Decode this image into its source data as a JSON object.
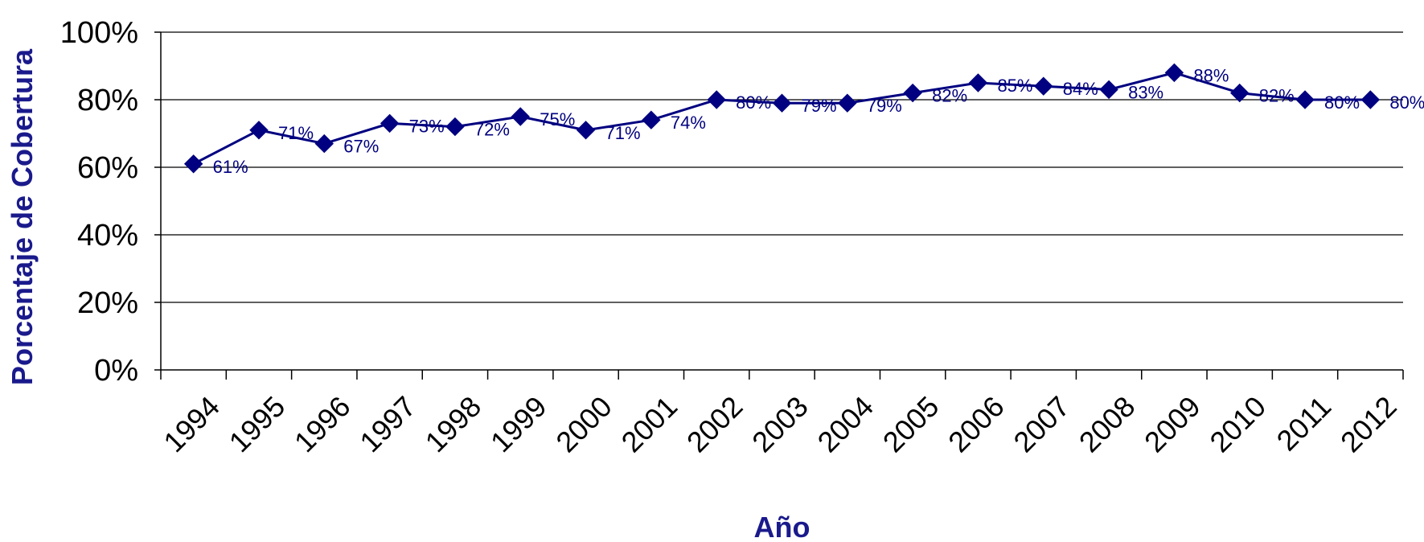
{
  "chart_data": {
    "type": "line",
    "title": "",
    "xlabel": "Año",
    "ylabel": "Porcentaje de Cobertura",
    "categories": [
      "1994",
      "1995",
      "1996",
      "1997",
      "1998",
      "1999",
      "2000",
      "2001",
      "2002",
      "2003",
      "2004",
      "2005",
      "2006",
      "2007",
      "2008",
      "2009",
      "2010",
      "2011",
      "2012"
    ],
    "series": [
      {
        "values": [
          61,
          71,
          67,
          73,
          72,
          75,
          71,
          74,
          80,
          79,
          79,
          82,
          85,
          84,
          83,
          88,
          82,
          80,
          80
        ],
        "labels": [
          "61%",
          "71%",
          "67%",
          "73%",
          "72%",
          "75%",
          "71%",
          "74%",
          "80%",
          "79%",
          "79%",
          "82%",
          "85%",
          "84%",
          "83%",
          "88%",
          "82%",
          "80%",
          "80%"
        ],
        "color": "#000080"
      }
    ],
    "y_ticks": [
      "0%",
      "20%",
      "40%",
      "60%",
      "80%",
      "100%"
    ],
    "ylim": [
      0,
      100
    ],
    "grid": true,
    "legend": "none",
    "colors": {
      "series": "#000080",
      "axis_title": "#1a1a8c",
      "grid": "#000000"
    }
  }
}
